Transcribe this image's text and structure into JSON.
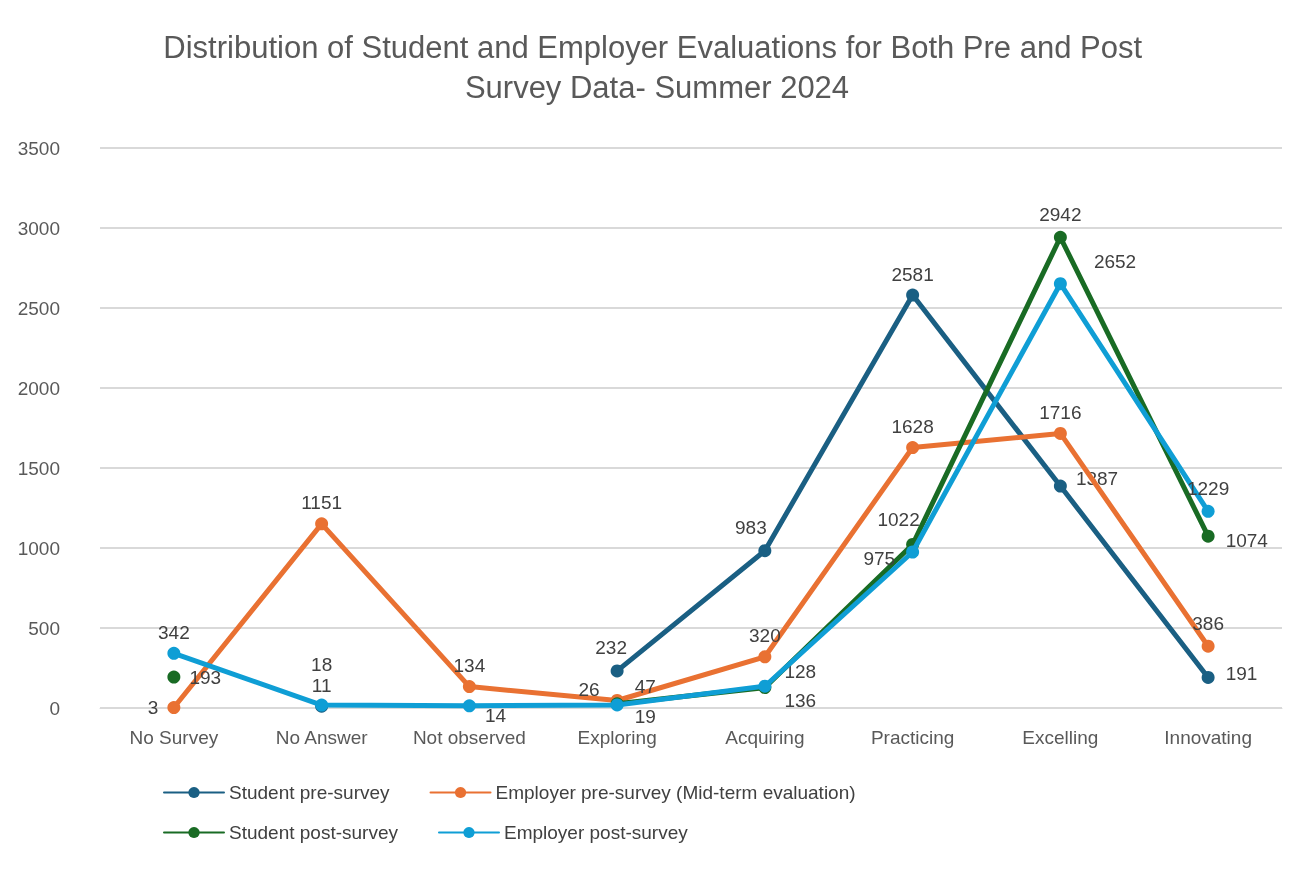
{
  "chart_data": {
    "type": "line",
    "title": "Distribution of Student and Employer Evaluations for Both Pre and Post Survey Data- Summer 2024",
    "categories": [
      "No Survey",
      "No Answer",
      "Not observed",
      "Exploring",
      "Acquiring",
      "Practicing",
      "Excelling",
      "Innovating"
    ],
    "series": [
      {
        "name": "Student pre-survey",
        "color": "#1a5f83",
        "values": [
          null,
          11,
          null,
          232,
          983,
          2581,
          1387,
          191
        ]
      },
      {
        "name": "Employer pre-survey (Mid-term evaluation)",
        "color": "#e97132",
        "values": [
          3,
          1151,
          134,
          47,
          320,
          1628,
          1716,
          386
        ]
      },
      {
        "name": "Student post-survey",
        "color": "#196b24",
        "values": [
          193,
          null,
          null,
          26,
          128,
          1022,
          2942,
          1074
        ]
      },
      {
        "name": "Employer post-survey",
        "color": "#0f9ed5",
        "values": [
          342,
          18,
          14,
          19,
          136,
          975,
          2652,
          1229
        ]
      }
    ],
    "ylim": [
      0,
      3500
    ],
    "yticks": [
      0,
      500,
      1000,
      1500,
      2000,
      2500,
      3000,
      3500
    ],
    "grid": "y",
    "legend": "bottom",
    "marker": "circle",
    "line_style": "solid",
    "data_labels": true
  }
}
